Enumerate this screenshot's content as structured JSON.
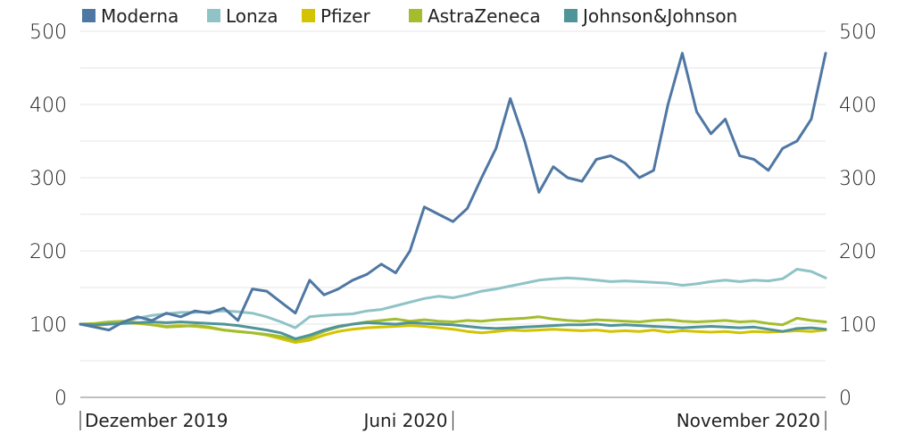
{
  "chart_data": {
    "type": "line",
    "title": "",
    "xlabel": "",
    "ylabel": "",
    "ylim": [
      0,
      500
    ],
    "y_ticks": [
      0,
      100,
      200,
      300,
      400,
      500
    ],
    "y_tick_labels": [
      "0",
      "100",
      "200",
      "300",
      "400",
      "500"
    ],
    "x_range": [
      0,
      52
    ],
    "x_ticks": [
      {
        "x": 0,
        "label": "Dezember 2019",
        "align": "start"
      },
      {
        "x": 26,
        "label": "Juni 2020",
        "align": "end"
      },
      {
        "x": 52,
        "label": "November 2020",
        "align": "end"
      }
    ],
    "grid": true,
    "legend_position": "top",
    "series": [
      {
        "name": "Lonza",
        "color": "#8fc3c6",
        "values": [
          100,
          99,
          100,
          103,
          108,
          112,
          114,
          116,
          116,
          117,
          118,
          117,
          115,
          110,
          103,
          95,
          110,
          112,
          113,
          114,
          118,
          120,
          125,
          130,
          135,
          138,
          136,
          140,
          145,
          148,
          152,
          156,
          160,
          162,
          163,
          162,
          160,
          158,
          159,
          158,
          157,
          156,
          153,
          155,
          158,
          160,
          158,
          160,
          159,
          162,
          175,
          172,
          163
        ]
      },
      {
        "name": "Pfizer",
        "color": "#d4c300",
        "values": [
          100,
          98,
          100,
          102,
          101,
          99,
          97,
          98,
          97,
          95,
          92,
          90,
          88,
          85,
          80,
          75,
          78,
          85,
          90,
          93,
          95,
          96,
          97,
          98,
          97,
          95,
          93,
          90,
          88,
          90,
          92,
          91,
          92,
          93,
          92,
          91,
          92,
          90,
          91,
          90,
          92,
          89,
          91,
          90,
          89,
          90,
          88,
          90,
          89,
          90,
          91,
          90,
          92
        ]
      },
      {
        "name": "AstraZeneca",
        "color": "#a3bd2e",
        "values": [
          100,
          101,
          103,
          104,
          102,
          99,
          96,
          97,
          98,
          96,
          92,
          90,
          88,
          86,
          83,
          78,
          82,
          90,
          96,
          100,
          103,
          105,
          107,
          104,
          106,
          104,
          103,
          105,
          104,
          106,
          107,
          108,
          110,
          107,
          105,
          104,
          106,
          105,
          104,
          103,
          105,
          106,
          104,
          103,
          104,
          105,
          103,
          104,
          101,
          99,
          108,
          105,
          103
        ]
      },
      {
        "name": "Johnson&Johnson",
        "color": "#4f9498",
        "values": [
          100,
          99,
          100,
          101,
          102,
          103,
          102,
          103,
          102,
          101,
          100,
          98,
          95,
          92,
          88,
          80,
          85,
          92,
          97,
          100,
          102,
          101,
          100,
          102,
          101,
          100,
          99,
          97,
          95,
          94,
          95,
          96,
          97,
          98,
          99,
          99,
          100,
          98,
          99,
          98,
          97,
          96,
          95,
          96,
          97,
          96,
          95,
          96,
          93,
          90,
          94,
          95,
          93
        ]
      },
      {
        "name": "Moderna",
        "color": "#4f77a3",
        "values": [
          100,
          96,
          92,
          103,
          110,
          105,
          115,
          110,
          118,
          115,
          122,
          105,
          148,
          145,
          130,
          115,
          160,
          140,
          148,
          160,
          168,
          182,
          170,
          200,
          260,
          250,
          240,
          258,
          300,
          340,
          408,
          350,
          280,
          315,
          300,
          295,
          325,
          330,
          320,
          300,
          310,
          400,
          470,
          390,
          360,
          380,
          330,
          325,
          310,
          340,
          350,
          380,
          470
        ]
      }
    ],
    "legend_order": [
      "Moderna",
      "Lonza",
      "Pfizer",
      "AstraZeneca",
      "Johnson&Johnson"
    ]
  }
}
